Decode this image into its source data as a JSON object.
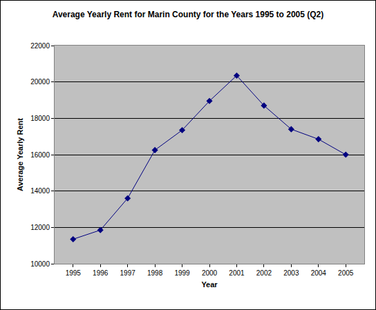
{
  "chart_data": {
    "type": "line",
    "title": "Average Yearly Rent for Marin County for the Years 1995 to 2005 (Q2)",
    "x_label": "Year",
    "y_label": "Average Yearly Rent",
    "categories": [
      "1995",
      "1996",
      "1997",
      "1998",
      "1999",
      "2000",
      "2001",
      "2002",
      "2003",
      "2004",
      "2005"
    ],
    "values": [
      11350,
      11850,
      13600,
      16250,
      17350,
      18950,
      20350,
      18700,
      17400,
      16850,
      16000
    ],
    "color": "#000080",
    "marker": "diamond",
    "line_style": "solid",
    "ylim": [
      10000,
      22000
    ],
    "yticks": [
      10000,
      12000,
      14000,
      16000,
      18000,
      20000,
      22000
    ],
    "grid": true
  }
}
